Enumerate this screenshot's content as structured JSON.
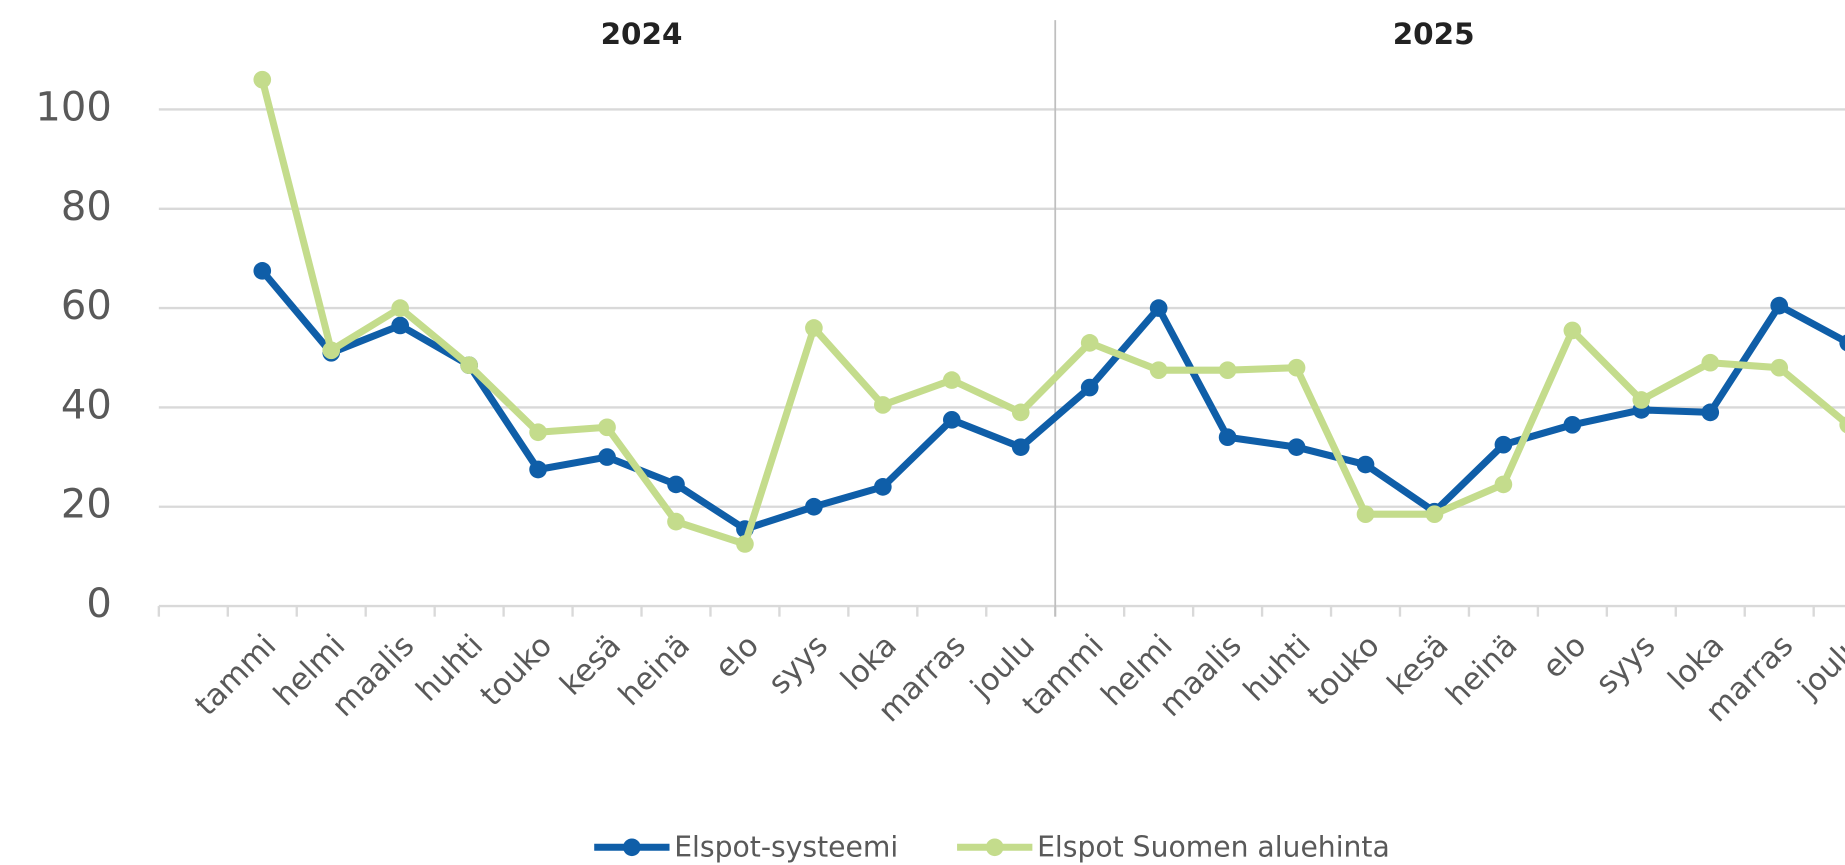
{
  "chart_data": {
    "type": "line",
    "groups": [
      "2024",
      "2025"
    ],
    "categories": [
      null,
      "tammi",
      "helmi",
      "maalis",
      "huhti",
      "touko",
      "kesä",
      "heinä",
      "elo",
      "syys",
      "loka",
      "marras",
      "joulu",
      "tammi",
      "helmi",
      "maalis",
      "huhti",
      "touko",
      "kesä",
      "heinä",
      "elo",
      "syys",
      "loka",
      "marras",
      "joulu"
    ],
    "series": [
      {
        "name": "Elspot-systeemi",
        "color": "#0f5ea8",
        "values": [
          null,
          67.5,
          51,
          56.5,
          48.5,
          27.5,
          30,
          24.5,
          15.5,
          20,
          24,
          37.5,
          32,
          44,
          60,
          34,
          32,
          28.5,
          19,
          32.5,
          36.5,
          39.5,
          39,
          60.5,
          53
        ]
      },
      {
        "name": "Elspot Suomen aluehinta",
        "color": "#c4dc8c",
        "values": [
          null,
          106,
          51.5,
          60,
          48.5,
          35,
          36,
          17,
          12.5,
          56,
          40.5,
          45.5,
          39,
          53,
          47.5,
          47.5,
          48,
          18.5,
          18.5,
          24.5,
          55.5,
          41.5,
          49,
          48,
          36.5
        ]
      }
    ],
    "ylim": [
      0,
      118
    ],
    "yticks": [
      0,
      20,
      40,
      60,
      80,
      100
    ],
    "grid": true,
    "legend": "bottom"
  }
}
